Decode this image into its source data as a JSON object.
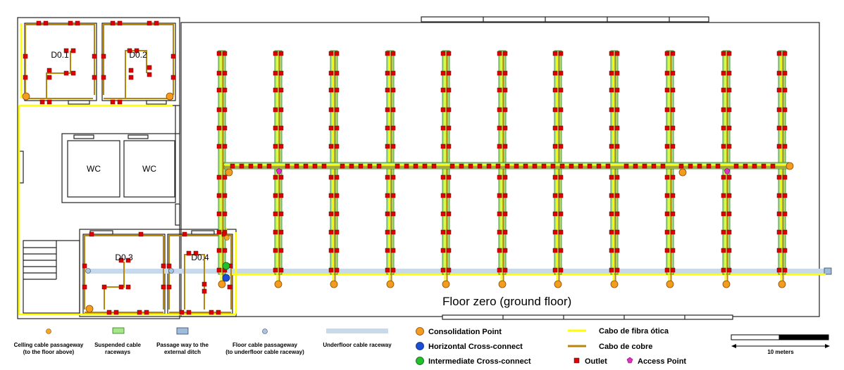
{
  "floor_title": "Floor zero (ground floor)",
  "rooms": [
    "D0.1",
    "D0.2",
    "D0.3",
    "D0.4",
    "WC",
    "WC"
  ],
  "colors": {
    "wall": "#222222",
    "wall_light": "#555555",
    "fiber": "#ffff00",
    "copper": "#b8860b",
    "raceway_fill": "#a6e58a",
    "raceway_edge": "#2e7d1a",
    "underfloor": "#c9d9ec",
    "outlet": "#dd0000",
    "outlet_edge": "#7a0000",
    "consolidation": "#f39c1f",
    "horizontal_cc": "#1a4fd6",
    "intermediate_cc": "#21c02c",
    "access_point": "#e52fc4",
    "ceiling_passage": "#f5a623",
    "floor_passage": "#a9c4e4",
    "external_passage": "#9fbcdc"
  },
  "legend": {
    "ceiling_passage": "Celling cable passageway\n(to the floor above)",
    "suspended_raceways": "Suspended cable\nraceways",
    "external_ditch": "Passage way to the\nexternal ditch",
    "floor_passage": "Floor cable passageway\n(to underfloor cable raceway)",
    "underfloor_raceway": "Underfloor cable raceway",
    "consolidation_point": "Consolidation Point",
    "horizontal_cc": "Horizontal Cross-connect",
    "intermediate_cc": "Intermediate Cross-connect",
    "fiber": "Cabo de fibra ótica",
    "copper": "Cabo de cobre",
    "outlet": "Outlet",
    "access_point": "Access Point",
    "scale": "10 meters"
  }
}
